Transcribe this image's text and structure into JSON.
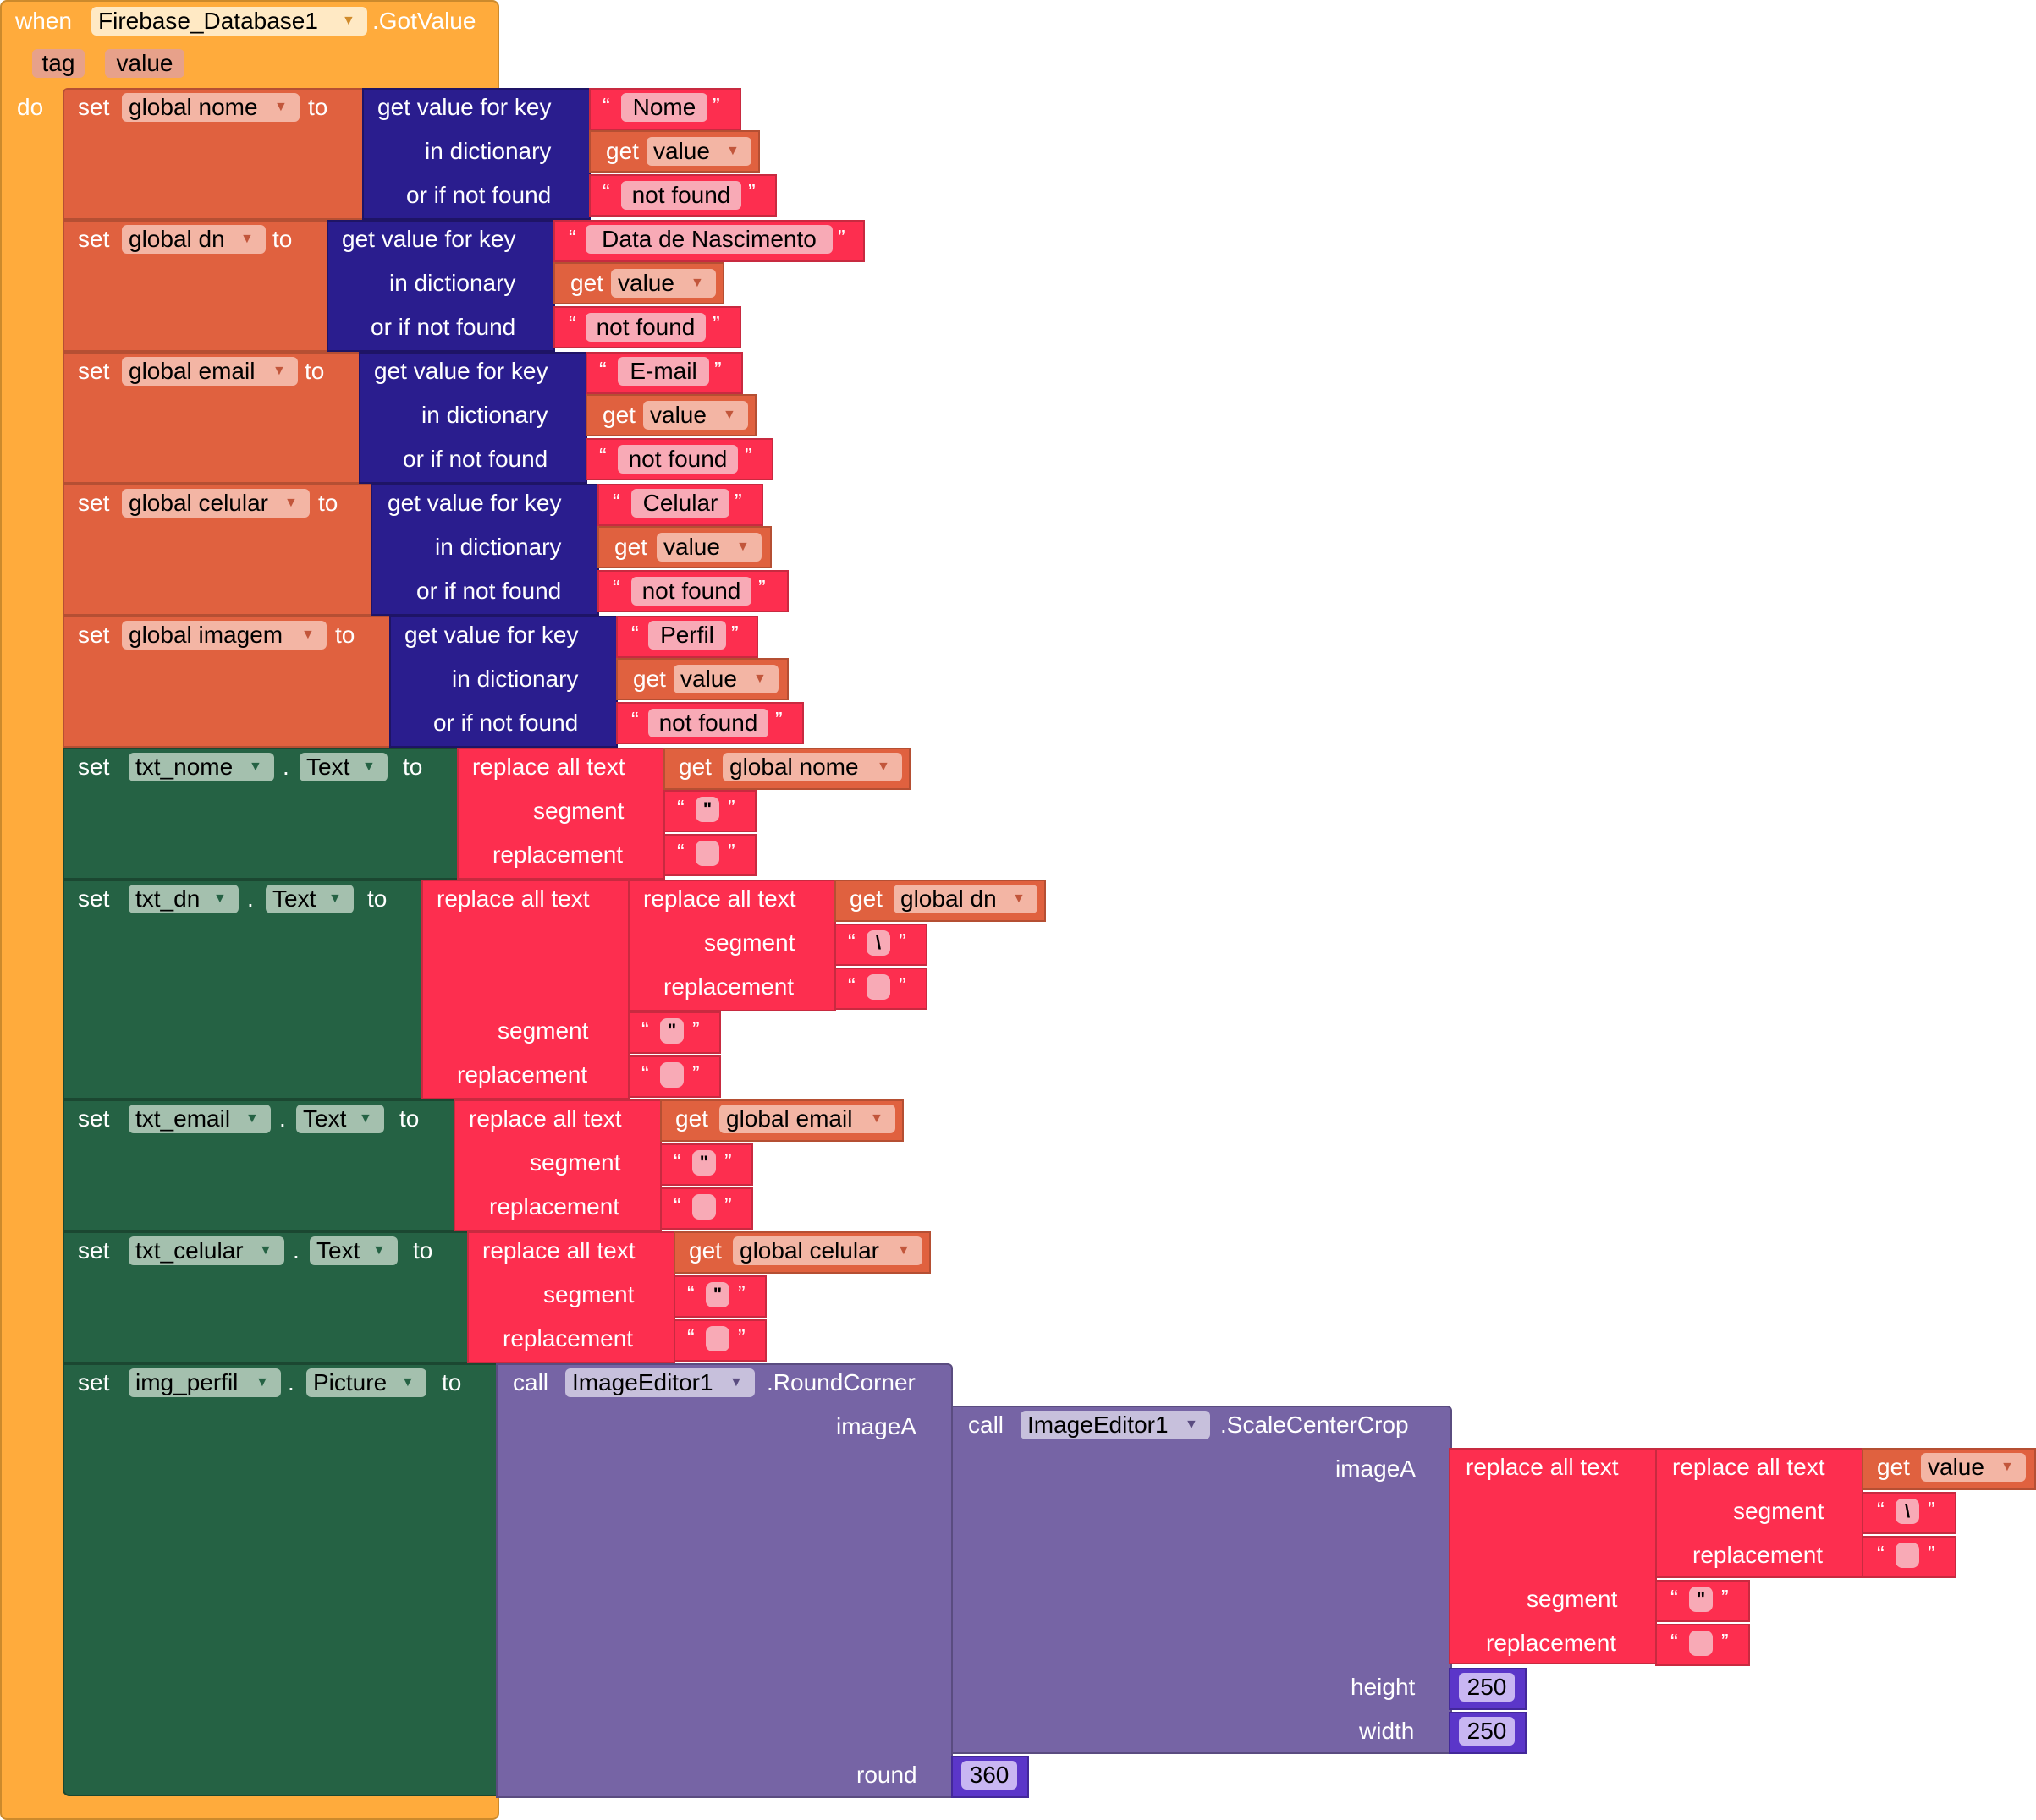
{
  "event": {
    "when": "when",
    "component": "Firebase_Database1",
    "event_name": ".GotValue",
    "params": [
      "tag",
      "value"
    ],
    "do": "do"
  },
  "keywords": {
    "set": "set",
    "to": "to",
    "get": "get",
    "dot": ".",
    "get_value_for_key": "get value for key",
    "in_dictionary": "in dictionary",
    "or_if_not_found": "or if not found",
    "replace_all_text": "replace all text",
    "segment": "segment",
    "replacement": "replacement",
    "call": "call",
    "imageA": "imageA",
    "height": "height",
    "width": "width",
    "round": "round",
    "open_quote": "“",
    "close_quote": "”"
  },
  "global_sets": [
    {
      "var": "global nome",
      "key": "Nome",
      "dict_var": "value",
      "not_found": "not found"
    },
    {
      "var": "global dn",
      "key": "Data de Nascimento",
      "dict_var": "value",
      "not_found": "not found"
    },
    {
      "var": "global email",
      "key": "E-mail",
      "dict_var": "value",
      "not_found": "not found"
    },
    {
      "var": "global celular",
      "key": "Celular",
      "dict_var": "value",
      "not_found": "not found"
    },
    {
      "var": "global imagem",
      "key": "Perfil",
      "dict_var": "value",
      "not_found": "not found"
    }
  ],
  "component_sets": [
    {
      "component": "txt_nome",
      "property": "Text",
      "source": "global nome"
    },
    {
      "component": "txt_dn",
      "property": "Text",
      "source": "global dn",
      "inner_segment": "\\"
    },
    {
      "component": "txt_email",
      "property": "Text",
      "source": "global email"
    },
    {
      "component": "txt_celular",
      "property": "Text",
      "source": "global celular"
    }
  ],
  "segment_quote_char": "\"",
  "picture_set": {
    "component": "img_perfil",
    "property": "Picture",
    "outer_call_component": "ImageEditor1",
    "outer_call_method": ".RoundCorner",
    "inner_call_component": "ImageEditor1",
    "inner_call_method": ".ScaleCenterCrop",
    "source": "value",
    "inner_segment": "\\",
    "height": "250",
    "width": "250",
    "round": "360"
  },
  "colors": {
    "event": "#ffab3c",
    "variable": "#e0613f",
    "dictionary": "#2a1d8e",
    "text": "#fd2e4f",
    "component": "#256244",
    "call": "#7664a5",
    "math": "#5b36c9"
  }
}
